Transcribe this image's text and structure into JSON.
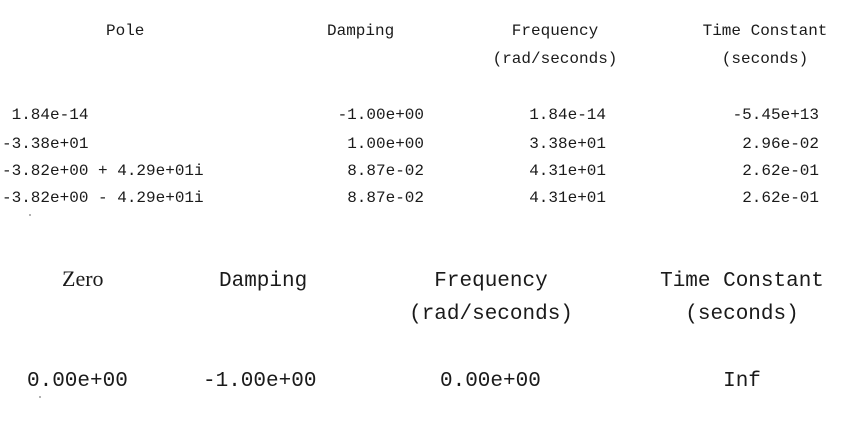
{
  "poles": {
    "headers": {
      "pole": "Pole",
      "damping": "Damping",
      "frequency_line1": "Frequency",
      "frequency_line2": "(rad/seconds)",
      "time_constant_line1": "Time Constant",
      "time_constant_line2": "(seconds)"
    },
    "rows": [
      {
        "pole": " 1.84e-14",
        "damping": "-1.00e+00",
        "frequency": "1.84e-14",
        "time_constant": "-5.45e+13"
      },
      {
        "pole": "-3.38e+01",
        "damping": "1.00e+00",
        "frequency": "3.38e+01",
        "time_constant": "2.96e-02"
      },
      {
        "pole": "-3.82e+00 + 4.29e+01i",
        "damping": "8.87e-02",
        "frequency": "4.31e+01",
        "time_constant": "2.62e-01"
      },
      {
        "pole": "-3.82e+00 - 4.29e+01i",
        "damping": "8.87e-02",
        "frequency": "4.31e+01",
        "time_constant": "2.62e-01"
      }
    ]
  },
  "zeros": {
    "headers": {
      "zero": "Zero",
      "damping": "Damping",
      "frequency_line1": "Frequency",
      "frequency_line2": "(rad/seconds)",
      "time_constant_line1": "Time Constant",
      "time_constant_line2": "(seconds)"
    },
    "rows": [
      {
        "zero": "0.00e+00",
        "damping": "-1.00e+00",
        "frequency": "0.00e+00",
        "time_constant": "Inf"
      }
    ]
  }
}
